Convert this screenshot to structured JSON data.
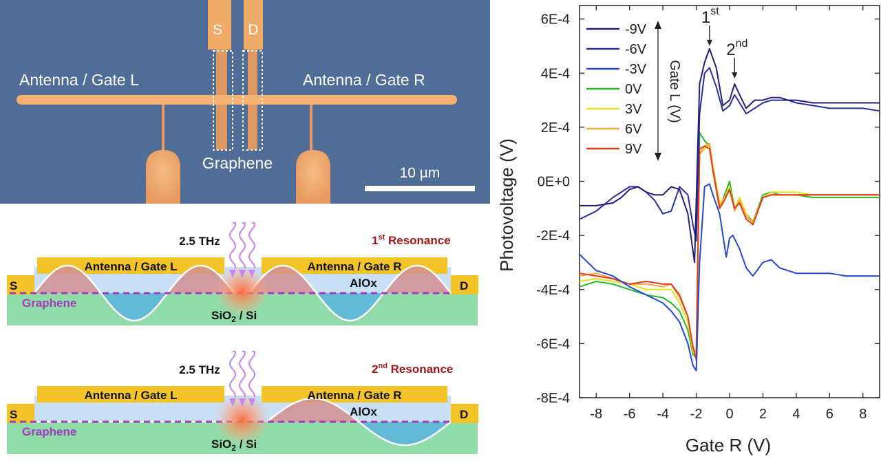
{
  "micrograph": {
    "label_s": "S",
    "label_d": "D",
    "antenna_left": "Antenna / Gate L",
    "antenna_right": "Antenna / Gate R",
    "graphene": "Graphene",
    "scalebar": "10 µm"
  },
  "schematics": [
    {
      "freq": "2.5 THz",
      "res_num": "1",
      "res_sup": "st",
      "res_text": " Resonance",
      "gate_l": "Antenna / Gate L",
      "gate_r": "Antenna / Gate R",
      "s": "S",
      "d": "D",
      "alox": "AlOx",
      "graphene": "Graphene",
      "substrate": "SiO",
      "substrate_sub": "2",
      "substrate_tail": " / Si"
    },
    {
      "freq": "2.5 THz",
      "res_num": "2",
      "res_sup": "nd",
      "res_text": " Resonance",
      "gate_l": "Antenna / Gate L",
      "gate_r": "Antenna / Gate R",
      "s": "S",
      "d": "D",
      "alox": "AlOx",
      "graphene": "Graphene",
      "substrate": "SiO",
      "substrate_sub": "2",
      "substrate_tail": " / Si"
    }
  ],
  "colors": {
    "gold": "#f2c428",
    "substrate": "#8fdcaa",
    "alox": "#c9dff5",
    "plasmon_red": "#d28f8f",
    "plasmon_blue": "#5ab4de",
    "graphene_line": "#a43cbd",
    "wave": "#c889ec",
    "resonance_text": "#a01818",
    "micro_bg": "#4f6d96",
    "electrode": "#f0aa6a"
  },
  "chart_data": {
    "type": "line",
    "xlabel": "Gate R (V)",
    "ylabel": "Photovoltage (V)",
    "xlim": [
      -9,
      9
    ],
    "ylim": [
      -0.0008,
      0.00065
    ],
    "xticks": [
      -8,
      -6,
      -4,
      -2,
      0,
      2,
      4,
      6,
      8
    ],
    "xtick_labels": [
      "-8",
      "-6",
      "-4",
      "-2",
      "0",
      "2",
      "4",
      "6",
      "8"
    ],
    "yticks": [
      -0.0008,
      -0.0006,
      -0.0004,
      -0.0002,
      0,
      0.0002,
      0.0004,
      0.0006
    ],
    "ytick_labels": [
      "-8E-4",
      "-6E-4",
      "-4E-4",
      "-2E-4",
      "0E+0",
      "2E-4",
      "4E-4",
      "6E-4"
    ],
    "legend_title": "Gate L (V)",
    "legend_position": "top-left",
    "annotations": [
      {
        "num": "1",
        "sup": "st",
        "x": -1.2,
        "y": 0.00049
      },
      {
        "num": "2",
        "sup": "nd",
        "x": 0.3,
        "y": 0.00037
      }
    ],
    "series": [
      {
        "name": "-9V",
        "color": "#2a1a78",
        "x": [
          -9,
          -8,
          -7,
          -6.5,
          -6,
          -5.5,
          -5,
          -4.5,
          -4,
          -3.5,
          -3,
          -2.5,
          -2.1,
          -1.8,
          -1.5,
          -1.2,
          -0.8,
          -0.4,
          0,
          0.3,
          0.6,
          1,
          1.5,
          2,
          2.5,
          3,
          3.5,
          4,
          5,
          6,
          7,
          8,
          9
        ],
        "y": [
          -9e-05,
          -9e-05,
          -8e-05,
          -6e-05,
          -3e-05,
          -2e-05,
          -4e-05,
          -5e-05,
          -5e-05,
          -2e-05,
          -3e-05,
          -0.00012,
          -0.0003,
          0.00036,
          0.00044,
          0.00049,
          0.00042,
          0.00028,
          0.0003,
          0.00036,
          0.00032,
          0.00027,
          0.0003,
          0.0003,
          0.00031,
          0.00031,
          0.0003,
          0.0003,
          0.00029,
          0.00029,
          0.00029,
          0.00029,
          0.00029
        ]
      },
      {
        "name": "-6V",
        "color": "#28309a",
        "x": [
          -9,
          -8,
          -7,
          -6,
          -5.5,
          -5,
          -4.5,
          -4,
          -3.5,
          -3,
          -2.5,
          -2.2,
          -2,
          -1.8,
          -1.5,
          -1.2,
          -0.8,
          -0.4,
          0,
          0.3,
          0.6,
          1,
          1.5,
          2,
          2.5,
          3,
          3.5,
          4,
          5,
          6,
          7,
          8,
          9
        ],
        "y": [
          -0.00014,
          -0.00011,
          -6e-05,
          -2e-05,
          -2e-05,
          -4e-05,
          -7e-05,
          -0.00012,
          -0.00011,
          -2e-05,
          -5e-05,
          -0.00016,
          -0.00022,
          0.00025,
          0.0004,
          0.00042,
          0.00035,
          0.00026,
          0.00028,
          0.00032,
          0.00029,
          0.00025,
          0.00027,
          0.00029,
          0.0003,
          0.0003,
          0.0003,
          0.00029,
          0.00028,
          0.00027,
          0.00027,
          0.00027,
          0.00026
        ]
      },
      {
        "name": "-3V",
        "color": "#2546d0",
        "x": [
          -9,
          -8,
          -7,
          -6,
          -5,
          -4,
          -3.5,
          -3,
          -2.5,
          -2.2,
          -2,
          -1.8,
          -1.5,
          -1.2,
          -1,
          -0.6,
          -0.2,
          0,
          0.2,
          0.6,
          1,
          1.4,
          2,
          2.5,
          3,
          4,
          5,
          6,
          7,
          8,
          9
        ],
        "y": [
          -0.00027,
          -0.00033,
          -0.00035,
          -0.00039,
          -0.00042,
          -0.00045,
          -0.00048,
          -0.00052,
          -0.0006,
          -0.00068,
          -0.0007,
          -0.0003,
          -2e-05,
          -1e-05,
          -5e-05,
          -0.00012,
          -0.00028,
          -0.00021,
          -0.0002,
          -0.00025,
          -0.00032,
          -0.00035,
          -0.0003,
          -0.00029,
          -0.00032,
          -0.00034,
          -0.00034,
          -0.00034,
          -0.00035,
          -0.00035,
          -0.00035
        ]
      },
      {
        "name": "0V",
        "color": "#28b828",
        "x": [
          -9,
          -8,
          -7,
          -6,
          -5,
          -4,
          -3.5,
          -3,
          -2.5,
          -2.2,
          -2,
          -1.8,
          -1.5,
          -1.2,
          -1,
          -0.6,
          -0.3,
          0,
          0.3,
          0.6,
          1,
          1.4,
          2,
          2.5,
          3,
          4,
          5,
          6,
          7,
          8,
          9
        ],
        "y": [
          -0.00039,
          -0.00037,
          -0.00038,
          -0.0004,
          -0.00042,
          -0.00043,
          -0.00045,
          -0.00048,
          -0.00055,
          -0.00064,
          -0.00065,
          0.00018,
          0.00015,
          0.00013,
          4e-05,
          -0.0001,
          -5e-05,
          0,
          -0.0001,
          -8e-05,
          -0.00012,
          -0.00015,
          -5e-05,
          -4e-05,
          -5e-05,
          -5e-05,
          -6e-05,
          -6e-05,
          -6e-05,
          -6e-05,
          -6e-05
        ]
      },
      {
        "name": "3V",
        "color": "#e6e11e",
        "x": [
          -9,
          -8,
          -7,
          -6,
          -5,
          -4,
          -3.5,
          -3,
          -2.5,
          -2.2,
          -2,
          -1.8,
          -1.5,
          -1.2,
          -1,
          -0.6,
          -0.3,
          0,
          0.3,
          0.6,
          1,
          1.4,
          2,
          2.5,
          3,
          4,
          5,
          6,
          7,
          8,
          9
        ],
        "y": [
          -0.00037,
          -0.00036,
          -0.00037,
          -0.00038,
          -0.0004,
          -0.0004,
          -0.0004,
          -0.00045,
          -0.00052,
          -0.00063,
          -0.00064,
          0.0001,
          0.00012,
          0.00014,
          6e-05,
          -8e-05,
          -6e-05,
          -2e-05,
          -0.0001,
          -6e-05,
          -0.00012,
          -0.00016,
          -6e-05,
          -4e-05,
          -4e-05,
          -4e-05,
          -5e-05,
          -5e-05,
          -5e-05,
          -5e-05,
          -5e-05
        ]
      },
      {
        "name": "6V",
        "color": "#f2a83a",
        "x": [
          -9,
          -8,
          -7,
          -6,
          -5,
          -4,
          -3.5,
          -3,
          -2.5,
          -2.2,
          -2,
          -1.8,
          -1.5,
          -1.2,
          -1,
          -0.6,
          -0.3,
          0,
          0.3,
          0.6,
          1,
          1.4,
          2,
          2.5,
          3,
          4,
          5,
          6,
          7,
          8,
          9
        ],
        "y": [
          -0.00035,
          -0.00034,
          -0.00036,
          -0.00038,
          -0.00038,
          -0.00039,
          -0.00038,
          -0.00043,
          -0.0005,
          -0.00062,
          -0.00063,
          0.0001,
          0.00013,
          0.00014,
          5e-05,
          -9e-05,
          -6e-05,
          -3e-05,
          -0.00011,
          -7e-05,
          -0.00013,
          -0.00015,
          -6e-05,
          -5e-05,
          -5e-05,
          -5e-05,
          -5e-05,
          -5e-05,
          -5e-05,
          -5e-05,
          -5e-05
        ]
      },
      {
        "name": "9V",
        "color": "#e23a1c",
        "x": [
          -9,
          -8,
          -7,
          -6,
          -5,
          -4,
          -3.5,
          -3,
          -2.5,
          -2.2,
          -2,
          -1.8,
          -1.5,
          -1.2,
          -1,
          -0.6,
          -0.3,
          0,
          0.3,
          0.6,
          1,
          1.4,
          2,
          2.5,
          3,
          4,
          5,
          6,
          7,
          8,
          9
        ],
        "y": [
          -0.00034,
          -0.00035,
          -0.00036,
          -0.00038,
          -0.00037,
          -0.00038,
          -0.00038,
          -0.00042,
          -0.0005,
          -0.00061,
          -0.00066,
          0.00012,
          0.00013,
          0.00012,
          4e-05,
          -0.0001,
          -7e-05,
          -3e-05,
          -0.0001,
          -8e-05,
          -0.00014,
          -0.00016,
          -6e-05,
          -5e-05,
          -5e-05,
          -5e-05,
          -5e-05,
          -5e-05,
          -5e-05,
          -5e-05,
          -5e-05
        ]
      }
    ]
  }
}
